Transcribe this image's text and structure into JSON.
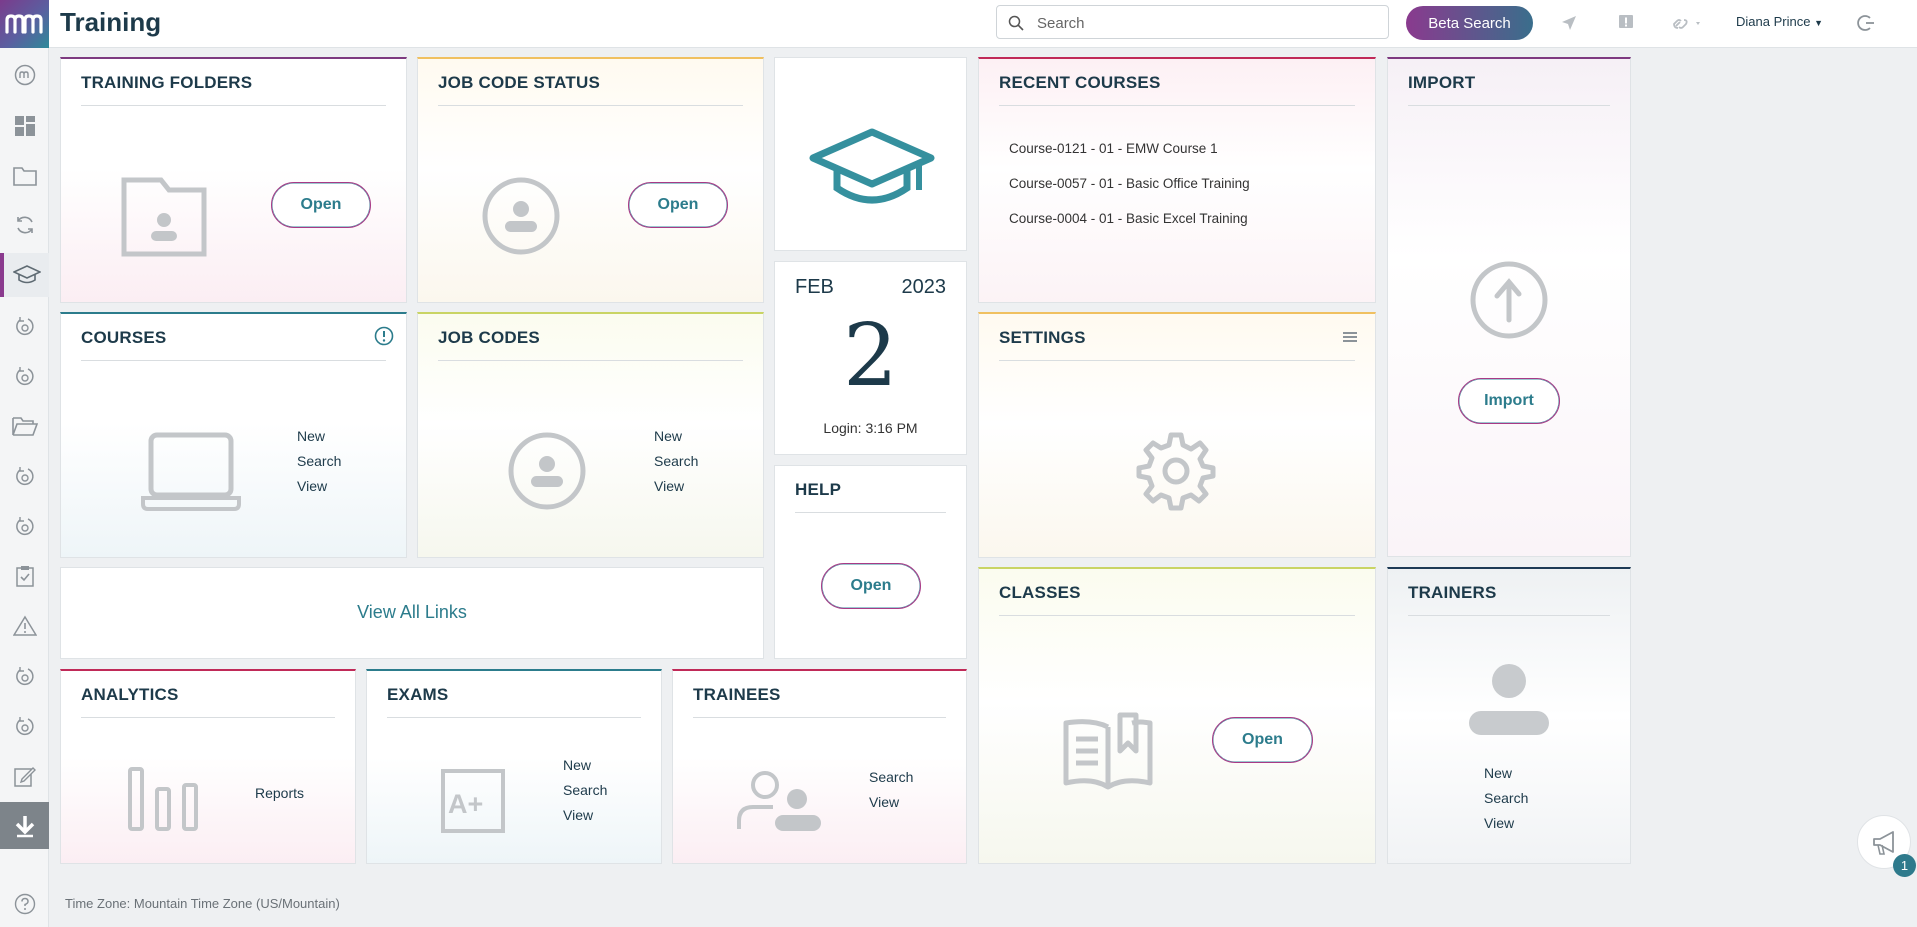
{
  "app": {
    "title": "Training"
  },
  "search": {
    "placeholder": "Search"
  },
  "header": {
    "beta_search": "Beta Search",
    "user_name": "Diana Prince"
  },
  "tiles": {
    "training_folders": {
      "title": "TRAINING FOLDERS",
      "button": "Open"
    },
    "job_code_status": {
      "title": "JOB CODE STATUS",
      "button": "Open"
    },
    "courses": {
      "title": "COURSES",
      "links": [
        "New",
        "Search",
        "View"
      ]
    },
    "job_codes": {
      "title": "JOB CODES",
      "links": [
        "New",
        "Search",
        "View"
      ]
    },
    "date": {
      "month": "FEB",
      "year": "2023",
      "day": "2",
      "login": "Login: 3:16 PM"
    },
    "help": {
      "title": "HELP",
      "button": "Open"
    },
    "recent_courses": {
      "title": "RECENT COURSES",
      "items": [
        "Course-0121 - 01 - EMW Course 1",
        "Course-0057 - 01 - Basic Office Training",
        "Course-0004 - 01 - Basic Excel Training"
      ]
    },
    "settings": {
      "title": "SETTINGS"
    },
    "import": {
      "title": "IMPORT",
      "button": "Import"
    },
    "view_all_links": {
      "label": "View All Links"
    },
    "analytics": {
      "title": "ANALYTICS",
      "links": [
        "Reports"
      ]
    },
    "exams": {
      "title": "EXAMS",
      "links": [
        "New",
        "Search",
        "View"
      ]
    },
    "trainees": {
      "title": "TRAINEES",
      "links": [
        "Search",
        "View"
      ]
    },
    "classes": {
      "title": "CLASSES",
      "button": "Open"
    },
    "trainers": {
      "title": "TRAINERS",
      "links": [
        "New",
        "Search",
        "View"
      ]
    }
  },
  "footer": {
    "timezone": "Time Zone: Mountain Time Zone (US/Mountain)"
  },
  "notifications": {
    "count": "1"
  },
  "colors": {
    "accent_purple": "#8a3a8e",
    "accent_teal": "#2c7c8c",
    "title_navy": "#1d3a4a"
  }
}
